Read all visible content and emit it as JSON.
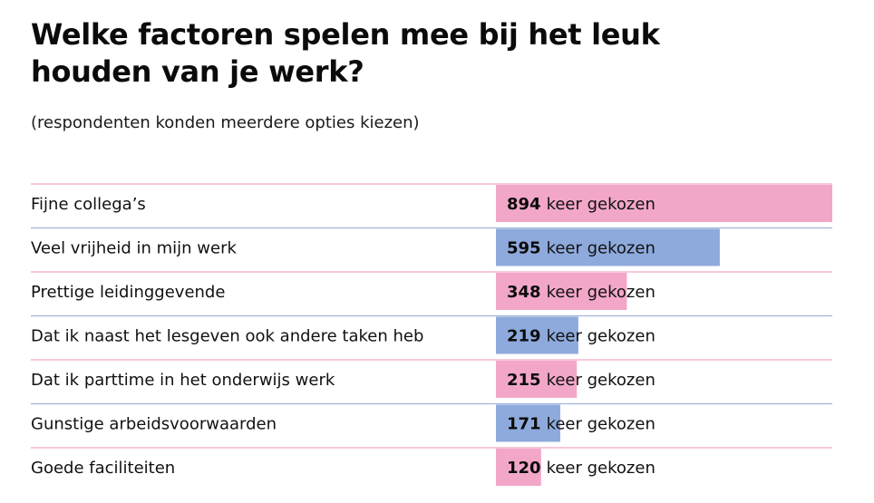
{
  "title": "Welke factoren spelen mee bij het leuk houden van je werk?",
  "subtitle": "(respondenten konden meerdere opties kiezen)",
  "value_suffix": "keer gekozen",
  "colors": {
    "pink": "#f2a7c9",
    "blue": "#8eaadc",
    "row_line_pink": "#f0a8c8",
    "row_line_blue": "#9fb4dc"
  },
  "chart_data": {
    "type": "bar",
    "orientation": "horizontal",
    "categories": [
      "Fijne collega’s",
      "Veel vrijheid in mijn werk",
      "Prettige leidinggevende",
      "Dat ik naast het lesgeven ook andere taken heb",
      "Dat ik parttime in het onderwijs werk",
      "Gunstige arbeidsvoorwaarden",
      "Goede faciliteiten"
    ],
    "values": [
      894,
      595,
      348,
      219,
      215,
      171,
      120
    ],
    "bar_colors": [
      "pink",
      "blue",
      "pink",
      "blue",
      "pink",
      "blue",
      "pink"
    ],
    "xlim": [
      0,
      894
    ],
    "grid": false,
    "legend": "none"
  }
}
